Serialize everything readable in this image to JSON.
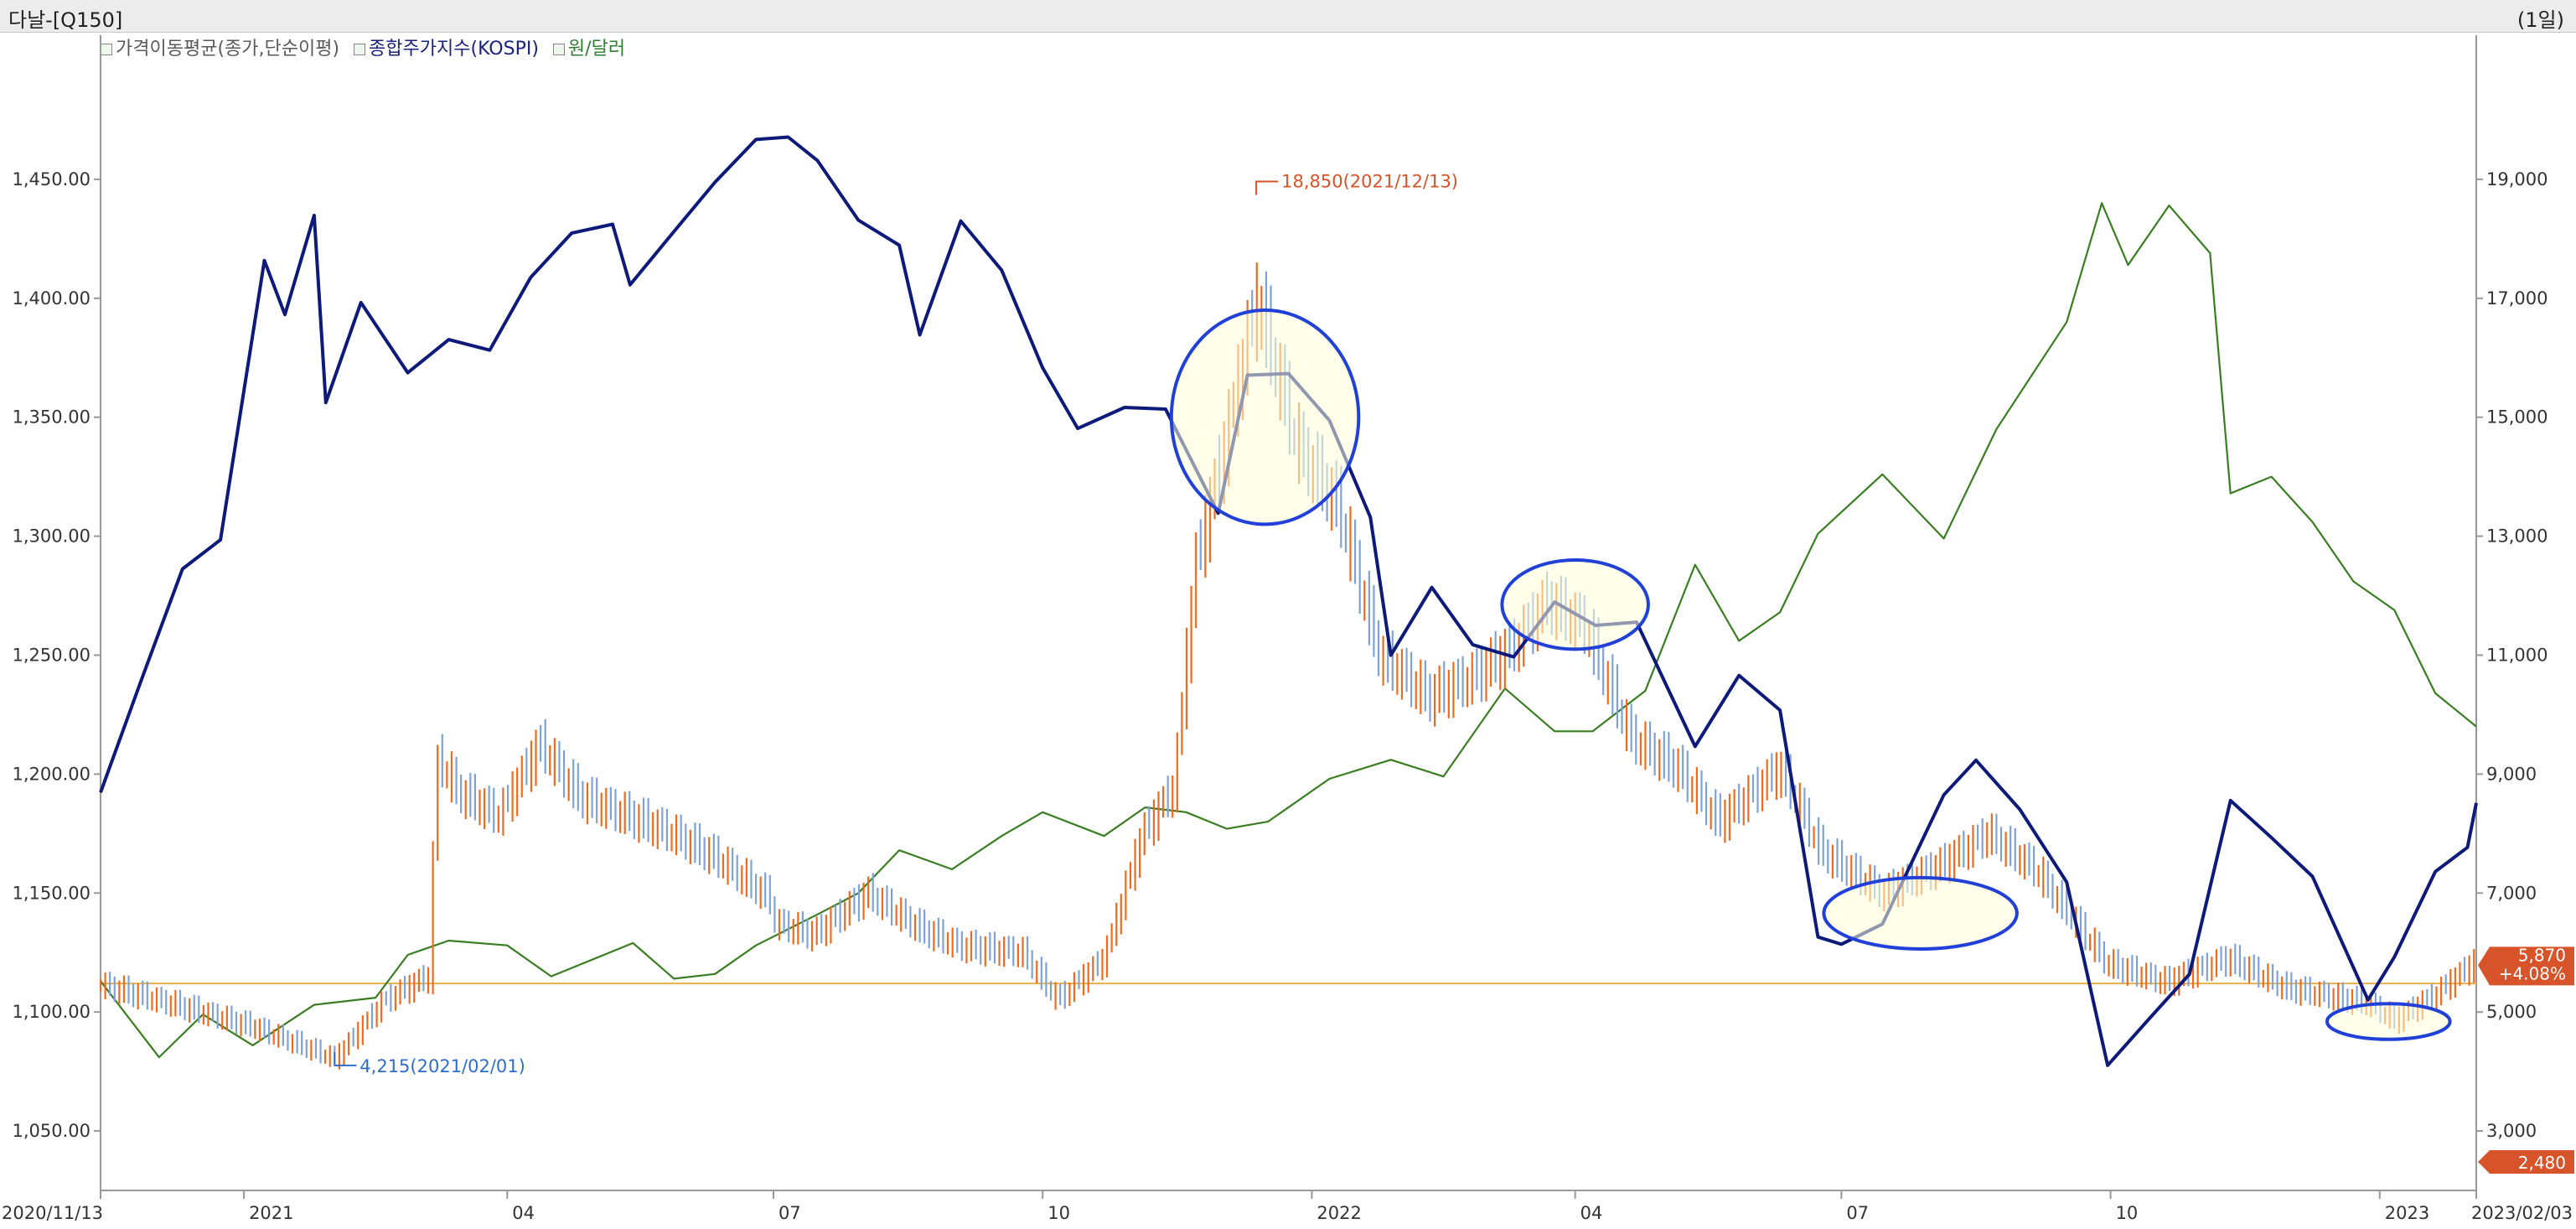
{
  "header": {
    "title": "다날-[Q150]",
    "period": "(1일)"
  },
  "legend": [
    {
      "label": "가격이동평균(종가,단순이평)",
      "color": "#5a5a5a"
    },
    {
      "label": "종합주가지수(KOSPI)",
      "color": "#1a237e"
    },
    {
      "label": "원/달러",
      "color": "#2e7d32"
    }
  ],
  "colors": {
    "kospi": "#0d1a7a",
    "usd": "#3a7d22",
    "price_up": "#f06a1e",
    "price_down": "#7fa2d6",
    "baseline": "#e8b04a",
    "highlight_fill": "#ffffd8",
    "highlight_stroke": "#2040d8",
    "badge_bg": "#d7532a",
    "ann_high": "#d7532a",
    "ann_low": "#2f6dcc",
    "axis": "#999999"
  },
  "chart_data": {
    "type": "line",
    "x_range": [
      "2020/11/13",
      "2023/02/03"
    ],
    "x_ticks": [
      {
        "label": "2020/11/13",
        "date": "2020-11-13"
      },
      {
        "label": "2021",
        "date": "2021-01-01"
      },
      {
        "label": "04",
        "date": "2021-04-01"
      },
      {
        "label": "07",
        "date": "2021-07-01"
      },
      {
        "label": "10",
        "date": "2021-10-01"
      },
      {
        "label": "2022",
        "date": "2022-01-01"
      },
      {
        "label": "04",
        "date": "2022-04-01"
      },
      {
        "label": "07",
        "date": "2022-07-01"
      },
      {
        "label": "10",
        "date": "2022-10-01"
      },
      {
        "label": "2023",
        "date": "2023-01-01"
      },
      {
        "label": "2023/02/03",
        "date": "2023-02-03"
      }
    ],
    "left_axis": {
      "min": 1025,
      "max": 1500,
      "ticks": [
        {
          "value": 1450,
          "label": "1,450.00"
        },
        {
          "value": 1400,
          "label": "1,400.00"
        },
        {
          "value": 1350,
          "label": "1,350.00"
        },
        {
          "value": 1300,
          "label": "1,300.00"
        },
        {
          "value": 1250,
          "label": "1,250.00"
        },
        {
          "value": 1200,
          "label": "1,200.00"
        },
        {
          "value": 1150,
          "label": "1,150.00"
        },
        {
          "value": 1100,
          "label": "1,100.00"
        },
        {
          "value": 1050,
          "label": "1,050.00"
        }
      ]
    },
    "right_axis": {
      "min": 2000,
      "max": 21000,
      "ticks": [
        {
          "value": 19000,
          "label": "19,000"
        },
        {
          "value": 17000,
          "label": "17,000"
        },
        {
          "value": 15000,
          "label": "15,000"
        },
        {
          "value": 13000,
          "label": "13,000"
        },
        {
          "value": 11000,
          "label": "11,000"
        },
        {
          "value": 9000,
          "label": "9,000"
        },
        {
          "value": 7000,
          "label": "7,000"
        },
        {
          "value": 5000,
          "label": "5,000"
        },
        {
          "value": 3000,
          "label": "3,000"
        }
      ]
    },
    "kospi_scale": {
      "min": 2000,
      "max": 3400
    },
    "series": [
      {
        "name": "종합주가지수(KOSPI)",
        "axis": "hidden",
        "points": [
          [
            "2020-11-13",
            2493
          ],
          [
            "2020-11-27",
            2633
          ],
          [
            "2020-12-11",
            2770
          ],
          [
            "2020-12-24",
            2806
          ],
          [
            "2021-01-08",
            3152
          ],
          [
            "2021-01-15",
            3085
          ],
          [
            "2021-01-25",
            3208
          ],
          [
            "2021-01-29",
            2976
          ],
          [
            "2021-02-10",
            3100
          ],
          [
            "2021-02-26",
            3013
          ],
          [
            "2021-03-12",
            3054
          ],
          [
            "2021-03-26",
            3041
          ],
          [
            "2021-04-09",
            3131
          ],
          [
            "2021-04-23",
            3186
          ],
          [
            "2021-05-07",
            3197
          ],
          [
            "2021-05-13",
            3122
          ],
          [
            "2021-05-28",
            3188
          ],
          [
            "2021-06-11",
            3249
          ],
          [
            "2021-06-25",
            3302
          ],
          [
            "2021-07-06",
            3305
          ],
          [
            "2021-07-16",
            3276
          ],
          [
            "2021-07-30",
            3202
          ],
          [
            "2021-08-13",
            3171
          ],
          [
            "2021-08-20",
            3060
          ],
          [
            "2021-09-03",
            3201
          ],
          [
            "2021-09-17",
            3140
          ],
          [
            "2021-10-01",
            3019
          ],
          [
            "2021-10-13",
            2944
          ],
          [
            "2021-10-29",
            2970
          ],
          [
            "2021-11-12",
            2968
          ],
          [
            "2021-11-30",
            2839
          ],
          [
            "2021-12-10",
            3010
          ],
          [
            "2021-12-24",
            3012
          ],
          [
            "2022-01-07",
            2954
          ],
          [
            "2022-01-21",
            2834
          ],
          [
            "2022-01-28",
            2663
          ],
          [
            "2022-02-11",
            2747
          ],
          [
            "2022-02-25",
            2676
          ],
          [
            "2022-03-11",
            2661
          ],
          [
            "2022-03-25",
            2729
          ],
          [
            "2022-04-08",
            2700
          ],
          [
            "2022-04-22",
            2704
          ],
          [
            "2022-05-12",
            2550
          ],
          [
            "2022-05-27",
            2638
          ],
          [
            "2022-06-10",
            2595
          ],
          [
            "2022-06-23",
            2314
          ],
          [
            "2022-07-01",
            2305
          ],
          [
            "2022-07-15",
            2330
          ],
          [
            "2022-08-05",
            2490
          ],
          [
            "2022-08-16",
            2533
          ],
          [
            "2022-08-31",
            2472
          ],
          [
            "2022-09-16",
            2382
          ],
          [
            "2022-09-30",
            2155
          ],
          [
            "2022-10-14",
            2212
          ],
          [
            "2022-10-28",
            2268
          ],
          [
            "2022-11-11",
            2483
          ],
          [
            "2022-11-25",
            2437
          ],
          [
            "2022-12-09",
            2389
          ],
          [
            "2022-12-28",
            2236
          ],
          [
            "2023-01-06",
            2289
          ],
          [
            "2023-01-20",
            2395
          ],
          [
            "2023-01-31",
            2425
          ],
          [
            "2023-02-03",
            2480
          ]
        ]
      },
      {
        "name": "원/달러",
        "axis": "left",
        "points": [
          [
            "2020-11-13",
            1113
          ],
          [
            "2020-12-03",
            1081
          ],
          [
            "2020-12-18",
            1099
          ],
          [
            "2021-01-04",
            1086
          ],
          [
            "2021-01-25",
            1103
          ],
          [
            "2021-02-15",
            1106
          ],
          [
            "2021-02-26",
            1124
          ],
          [
            "2021-03-12",
            1130
          ],
          [
            "2021-04-01",
            1128
          ],
          [
            "2021-04-16",
            1115
          ],
          [
            "2021-05-14",
            1129
          ],
          [
            "2021-05-28",
            1114
          ],
          [
            "2021-06-11",
            1116
          ],
          [
            "2021-06-25",
            1128
          ],
          [
            "2021-07-16",
            1141
          ],
          [
            "2021-07-30",
            1150
          ],
          [
            "2021-08-13",
            1168
          ],
          [
            "2021-08-31",
            1160
          ],
          [
            "2021-09-17",
            1174
          ],
          [
            "2021-10-01",
            1184
          ],
          [
            "2021-10-22",
            1174
          ],
          [
            "2021-11-05",
            1186
          ],
          [
            "2021-11-19",
            1184
          ],
          [
            "2021-12-03",
            1177
          ],
          [
            "2021-12-17",
            1180
          ],
          [
            "2022-01-07",
            1198
          ],
          [
            "2022-01-28",
            1206
          ],
          [
            "2022-02-15",
            1199
          ],
          [
            "2022-03-08",
            1236
          ],
          [
            "2022-03-25",
            1218
          ],
          [
            "2022-04-07",
            1218
          ],
          [
            "2022-04-25",
            1235
          ],
          [
            "2022-05-12",
            1288
          ],
          [
            "2022-05-27",
            1256
          ],
          [
            "2022-06-10",
            1268
          ],
          [
            "2022-06-23",
            1301
          ],
          [
            "2022-07-15",
            1326
          ],
          [
            "2022-08-05",
            1299
          ],
          [
            "2022-08-23",
            1345
          ],
          [
            "2022-09-16",
            1390
          ],
          [
            "2022-09-28",
            1440
          ],
          [
            "2022-10-07",
            1414
          ],
          [
            "2022-10-21",
            1439
          ],
          [
            "2022-11-04",
            1419
          ],
          [
            "2022-11-11",
            1318
          ],
          [
            "2022-11-25",
            1325
          ],
          [
            "2022-12-09",
            1306
          ],
          [
            "2022-12-23",
            1281
          ],
          [
            "2023-01-06",
            1269
          ],
          [
            "2023-01-20",
            1234
          ],
          [
            "2023-02-03",
            1220
          ]
        ]
      },
      {
        "name": "다날",
        "axis": "right",
        "points": [
          [
            "2020-11-13",
            5450
          ],
          [
            "2020-12-10",
            5100
          ],
          [
            "2021-01-04",
            4750
          ],
          [
            "2021-02-01",
            4215
          ],
          [
            "2021-02-18",
            5200
          ],
          [
            "2021-03-05",
            5600
          ],
          [
            "2021-03-08",
            9300
          ],
          [
            "2021-03-15",
            8700
          ],
          [
            "2021-03-29",
            8300
          ],
          [
            "2021-04-12",
            9500
          ],
          [
            "2021-04-26",
            8600
          ],
          [
            "2021-05-12",
            8300
          ],
          [
            "2021-05-27",
            8000
          ],
          [
            "2021-06-11",
            7600
          ],
          [
            "2021-06-30",
            6900
          ],
          [
            "2021-07-01",
            6500
          ],
          [
            "2021-07-15",
            6300
          ],
          [
            "2021-08-02",
            7000
          ],
          [
            "2021-08-20",
            6400
          ],
          [
            "2021-09-03",
            6100
          ],
          [
            "2021-09-24",
            6000
          ],
          [
            "2021-10-06",
            5200
          ],
          [
            "2021-10-22",
            5900
          ],
          [
            "2021-11-04",
            8000
          ],
          [
            "2021-11-15",
            8800
          ],
          [
            "2021-11-22",
            12500
          ],
          [
            "2021-12-01",
            14300
          ],
          [
            "2021-12-13",
            17000
          ],
          [
            "2021-12-27",
            14500
          ],
          [
            "2022-01-10",
            13500
          ],
          [
            "2022-01-24",
            11000
          ],
          [
            "2022-02-10",
            10300
          ],
          [
            "2022-02-24",
            10600
          ],
          [
            "2022-03-10",
            11100
          ],
          [
            "2022-03-22",
            11900
          ],
          [
            "2022-04-04",
            11500
          ],
          [
            "2022-04-20",
            9600
          ],
          [
            "2022-05-06",
            9100
          ],
          [
            "2022-05-20",
            8200
          ],
          [
            "2022-06-10",
            9100
          ],
          [
            "2022-06-24",
            7700
          ],
          [
            "2022-07-15",
            7000
          ],
          [
            "2022-08-05",
            7500
          ],
          [
            "2022-08-20",
            8000
          ],
          [
            "2022-09-05",
            7400
          ],
          [
            "2022-09-30",
            5800
          ],
          [
            "2022-10-20",
            5500
          ],
          [
            "2022-11-10",
            5900
          ],
          [
            "2022-11-30",
            5400
          ],
          [
            "2022-12-28",
            5150
          ],
          [
            "2023-01-06",
            4860
          ],
          [
            "2023-01-20",
            5300
          ],
          [
            "2023-02-03",
            5870
          ]
        ]
      }
    ],
    "baseline": {
      "value": 5480,
      "axis": "right"
    },
    "annotations": [
      {
        "label": "18,850(2021/12/13)",
        "date": "2021-12-13",
        "value": 18850,
        "kind": "high"
      },
      {
        "label": "4,215(2021/02/01)",
        "date": "2021-02-01",
        "value": 4215,
        "kind": "low"
      }
    ],
    "badges": [
      {
        "label": "5,870",
        "value": 5870
      },
      {
        "label": "+4.08%",
        "value": 5870
      },
      {
        "label": "2,480",
        "value": 2480
      }
    ],
    "highlights": [
      {
        "date": "2021-12-16",
        "value": 15000,
        "rx_days": 32,
        "ry_value": 1800
      },
      {
        "date": "2022-04-01",
        "value": 11850,
        "rx_days": 25,
        "ry_value": 750
      },
      {
        "date": "2022-07-28",
        "value": 6660,
        "rx_days": 33,
        "ry_value": 600
      },
      {
        "date": "2023-01-04",
        "value": 4840,
        "rx_days": 21,
        "ry_value": 300
      }
    ]
  }
}
